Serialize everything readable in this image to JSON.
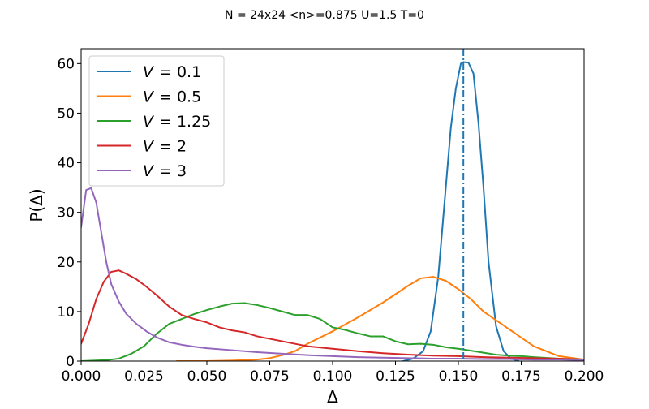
{
  "chart_data": {
    "type": "line",
    "title": "N = 24x24 <n>=0.875 U=1.5 T=0",
    "xlabel": "Δ",
    "ylabel": "P(Δ)",
    "xlim": [
      0.0,
      0.2
    ],
    "ylim": [
      0,
      63
    ],
    "x_ticks": [
      0.0,
      0.025,
      0.05,
      0.075,
      0.1,
      0.125,
      0.15,
      0.175,
      0.2
    ],
    "x_tick_labels": [
      "0.000",
      "0.025",
      "0.050",
      "0.075",
      "0.100",
      "0.125",
      "0.150",
      "0.175",
      "0.200"
    ],
    "y_ticks": [
      0,
      10,
      20,
      30,
      40,
      50,
      60
    ],
    "y_tick_labels": [
      "0",
      "10",
      "20",
      "30",
      "40",
      "50",
      "60"
    ],
    "grid": false,
    "legend_position": "top-left",
    "vline": {
      "x": 0.152,
      "color": "#1f77b4",
      "style": "dash-dot"
    },
    "series": [
      {
        "name": "V = 0.1",
        "legend_var": "V",
        "legend_value": "= 0.1",
        "color": "#1f77b4",
        "x": [
          0.128,
          0.132,
          0.136,
          0.139,
          0.142,
          0.145,
          0.147,
          0.149,
          0.151,
          0.152,
          0.154,
          0.156,
          0.158,
          0.16,
          0.162,
          0.165,
          0.168,
          0.171,
          0.174
        ],
        "y": [
          0,
          0.5,
          2,
          6,
          17,
          35,
          47,
          55,
          60,
          60.3,
          60.2,
          58,
          48,
          35,
          20,
          7,
          2,
          0.5,
          0
        ]
      },
      {
        "name": "V = 0.5",
        "legend_var": "V",
        "legend_value": "= 0.5",
        "color": "#ff7f0e",
        "x": [
          0.038,
          0.05,
          0.06,
          0.07,
          0.075,
          0.08,
          0.085,
          0.09,
          0.1,
          0.11,
          0.12,
          0.13,
          0.135,
          0.14,
          0.145,
          0.15,
          0.155,
          0.16,
          0.17,
          0.18,
          0.19,
          0.2
        ],
        "y": [
          0,
          0,
          0.1,
          0.3,
          0.6,
          1.2,
          2,
          3.5,
          6,
          8.8,
          11.8,
          15.2,
          16.7,
          17,
          16.2,
          14.5,
          12.5,
          10,
          6.5,
          3,
          1,
          0.3
        ]
      },
      {
        "name": "V = 1.25",
        "legend_var": "V",
        "legend_value": "= 1.25",
        "color": "#2ca02c",
        "x": [
          0.0,
          0.01,
          0.015,
          0.02,
          0.025,
          0.03,
          0.035,
          0.04,
          0.045,
          0.05,
          0.055,
          0.06,
          0.065,
          0.07,
          0.075,
          0.08,
          0.085,
          0.09,
          0.095,
          0.1,
          0.105,
          0.11,
          0.115,
          0.12,
          0.125,
          0.13,
          0.135,
          0.14,
          0.145,
          0.15,
          0.155,
          0.16,
          0.165,
          0.17,
          0.175,
          0.18,
          0.19,
          0.2
        ],
        "y": [
          0,
          0.2,
          0.5,
          1.5,
          3,
          5.5,
          7.5,
          8.5,
          9.5,
          10.3,
          11,
          11.6,
          11.7,
          11.3,
          10.7,
          10,
          9.3,
          9.3,
          8.5,
          6.8,
          6.3,
          5.6,
          5,
          5,
          4,
          3.4,
          3.5,
          3.3,
          2.8,
          2.5,
          2.1,
          1.7,
          1.3,
          1.1,
          1.0,
          0.8,
          0.5,
          0.3
        ]
      },
      {
        "name": "V = 2",
        "legend_var": "V",
        "legend_value": "= 2",
        "color": "#d62728",
        "x": [
          0.0,
          0.003,
          0.006,
          0.009,
          0.012,
          0.015,
          0.018,
          0.022,
          0.026,
          0.03,
          0.035,
          0.04,
          0.045,
          0.05,
          0.055,
          0.06,
          0.065,
          0.07,
          0.08,
          0.09,
          0.1,
          0.11,
          0.12,
          0.13,
          0.14,
          0.15,
          0.16,
          0.17,
          0.18,
          0.19,
          0.2
        ],
        "y": [
          3.5,
          7.5,
          12.5,
          16,
          18,
          18.3,
          17.6,
          16.5,
          15,
          13.3,
          11,
          9.3,
          8.5,
          7.8,
          6.8,
          6.2,
          5.8,
          5,
          4,
          3,
          2.5,
          2,
          1.6,
          1.3,
          1.1,
          1,
          0.8,
          0.7,
          0.6,
          0.5,
          0.3
        ]
      },
      {
        "name": "V = 3",
        "legend_var": "V",
        "legend_value": "= 3",
        "color": "#9467bd",
        "x": [
          0.0,
          0.002,
          0.004,
          0.006,
          0.008,
          0.01,
          0.012,
          0.015,
          0.018,
          0.022,
          0.026,
          0.03,
          0.035,
          0.04,
          0.045,
          0.05,
          0.06,
          0.07,
          0.08,
          0.09,
          0.1,
          0.11,
          0.12,
          0.13,
          0.14,
          0.15,
          0.16,
          0.17,
          0.18,
          0.19,
          0.2
        ],
        "y": [
          27,
          34.5,
          34.9,
          32,
          26,
          20,
          15.5,
          12,
          9.5,
          7.5,
          6,
          4.8,
          3.8,
          3.3,
          2.9,
          2.6,
          2.2,
          1.8,
          1.5,
          1.2,
          1,
          0.8,
          0.7,
          0.6,
          0.5,
          0.5,
          0.4,
          0.4,
          0.3,
          0.3,
          0.2
        ]
      }
    ]
  }
}
